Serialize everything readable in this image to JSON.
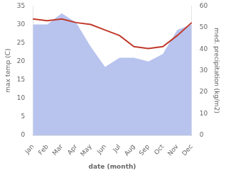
{
  "chart_data": {
    "type": "line",
    "categories": [
      "Jan",
      "Feb",
      "Mar",
      "Apr",
      "May",
      "Jun",
      "Jul",
      "Aug",
      "Sep",
      "Oct",
      "Nov",
      "Dec"
    ],
    "series": [
      {
        "type": "area",
        "color": "#b8c4ee",
        "values": [
          30.0,
          30.0,
          33.0,
          30.5,
          24.0,
          18.5,
          21.0,
          21.0,
          20.0,
          22.0,
          28.5,
          30.0
        ]
      },
      {
        "type": "line",
        "color": "#c0392b",
        "values": [
          31.5,
          31.0,
          31.5,
          30.5,
          30.0,
          28.5,
          27.0,
          24.0,
          23.5,
          24.0,
          27.0,
          30.5
        ]
      }
    ],
    "xlabel": "date (month)",
    "ylabel": "max temp (C)",
    "y2label": "med. precipitation (kg/m2)",
    "ylim": [
      0,
      35
    ],
    "yticks": [
      0,
      5,
      10,
      15,
      20,
      25,
      30,
      35
    ],
    "y2lim": [
      0,
      60
    ],
    "y2ticks": [
      0,
      10,
      20,
      30,
      40,
      50,
      60
    ],
    "grid": false
  }
}
